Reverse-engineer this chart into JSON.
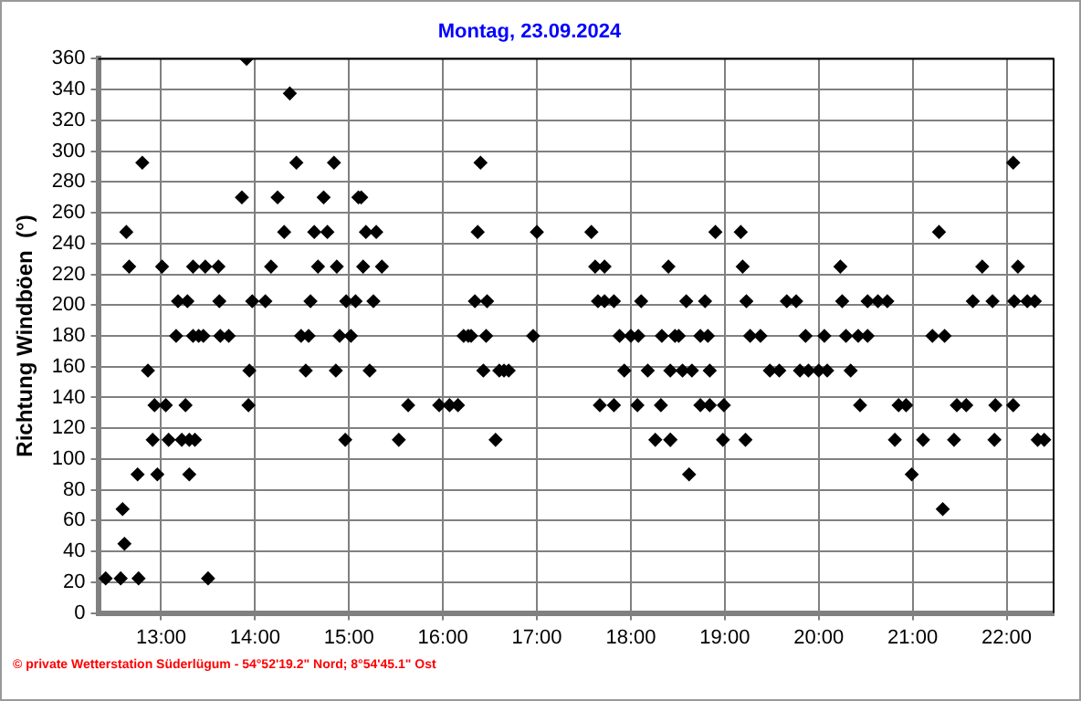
{
  "chart_data": {
    "type": "scatter",
    "title": "Montag, 23.09.2024",
    "ylabel": "Richtung Windböen  (°)",
    "annotations": [
      "© private Wetterstation Süderlügum - 54°52'19.2\" Nord; 8°54'45.1\" Ost"
    ],
    "series": [
      {
        "color": "#000000",
        "x": [
          12.41,
          12.57,
          12.76,
          13.5,
          12.61,
          12.59,
          12.75,
          12.96,
          13.3,
          12.91,
          13.08,
          13.22,
          13.3,
          13.36,
          12.93,
          13.05,
          13.26,
          13.93,
          12.86,
          13.94,
          14.54,
          14.86,
          13.16,
          13.34,
          13.4,
          13.45,
          13.63,
          13.72,
          14.49,
          14.57,
          14.9,
          15.02,
          13.18,
          13.28,
          13.62,
          13.97,
          14.11,
          14.59,
          14.97,
          15.07,
          12.66,
          13.01,
          13.34,
          13.47,
          13.61,
          14.17,
          14.67,
          14.87,
          12.63,
          14.31,
          14.63,
          14.77,
          13.86,
          14.24,
          14.73,
          15.1,
          12.8,
          14.44,
          14.84,
          14.37,
          13.91,
          16.4,
          15.13,
          15.18,
          15.29,
          16.37,
          17.0,
          17.58,
          15.15,
          15.35,
          17.62,
          17.72,
          18.4,
          15.26,
          16.34,
          16.47,
          17.65,
          17.72,
          17.82,
          18.11,
          16.22,
          16.27,
          16.3,
          16.46,
          16.96,
          17.88,
          18.0,
          18.08,
          18.33,
          18.47,
          15.22,
          16.43,
          16.6,
          16.65,
          16.7,
          17.93,
          18.18,
          18.55,
          15.63,
          15.96,
          16.07,
          16.16,
          17.67,
          17.82,
          18.07,
          18.32,
          14.96,
          15.53,
          16.56,
          18.26,
          18.42,
          18.62,
          18.9,
          19.17,
          21.28,
          19.19,
          20.23,
          21.74,
          22.12,
          18.59,
          18.79,
          19.23,
          19.66,
          19.76,
          20.25,
          20.52,
          20.63,
          20.73,
          21.64,
          21.85,
          22.08,
          22.22,
          22.3,
          18.51,
          18.74,
          18.82,
          19.27,
          19.38,
          19.86,
          20.06,
          20.29,
          20.42,
          20.52,
          21.21,
          21.34,
          18.42,
          18.65,
          18.84,
          19.48,
          19.58,
          19.8,
          19.89,
          20.0,
          20.09,
          20.34,
          18.74,
          18.84,
          18.99,
          20.44,
          20.85,
          20.93,
          21.47,
          21.57,
          21.88,
          22.07,
          18.42,
          18.98,
          19.22,
          20.81,
          21.11,
          21.44,
          21.87,
          22.33,
          22.4,
          20.99,
          21.32,
          22.07
        ],
        "values": [
          22.5,
          22.5,
          22.5,
          22.5,
          45,
          67.5,
          90,
          90,
          90,
          112.5,
          112.5,
          112.5,
          112.5,
          112.5,
          135,
          135,
          135,
          135,
          157.5,
          157.5,
          157.5,
          157.5,
          180,
          180,
          180,
          180,
          180,
          180,
          180,
          180,
          180,
          180,
          202.5,
          202.5,
          202.5,
          202.5,
          202.5,
          202.5,
          202.5,
          202.5,
          225,
          225,
          225,
          225,
          225,
          225,
          225,
          225,
          247.5,
          247.5,
          247.5,
          247.5,
          270,
          270,
          270,
          270,
          292.5,
          292.5,
          292.5,
          337.5,
          360,
          292.5,
          270,
          247.5,
          247.5,
          247.5,
          247.5,
          247.5,
          225,
          225,
          225,
          225,
          225,
          202.5,
          202.5,
          202.5,
          202.5,
          202.5,
          202.5,
          202.5,
          180,
          180,
          180,
          180,
          180,
          180,
          180,
          180,
          180,
          180,
          157.5,
          157.5,
          157.5,
          157.5,
          157.5,
          157.5,
          157.5,
          157.5,
          135,
          135,
          135,
          135,
          135,
          135,
          135,
          135,
          112.5,
          112.5,
          112.5,
          112.5,
          112.5,
          90,
          247.5,
          247.5,
          247.5,
          225,
          225,
          225,
          225,
          202.5,
          202.5,
          202.5,
          202.5,
          202.5,
          202.5,
          202.5,
          202.5,
          202.5,
          202.5,
          202.5,
          202.5,
          202.5,
          202.5,
          180,
          180,
          180,
          180,
          180,
          180,
          180,
          180,
          180,
          180,
          180,
          180,
          157.5,
          157.5,
          157.5,
          157.5,
          157.5,
          157.5,
          157.5,
          157.5,
          157.5,
          157.5,
          135,
          135,
          135,
          135,
          135,
          135,
          135,
          135,
          135,
          135,
          112.5,
          112.5,
          112.5,
          112.5,
          112.5,
          112.5,
          112.5,
          112.5,
          112.5,
          90,
          67.5,
          292.5
        ]
      }
    ],
    "xlim": [
      12.33,
      22.5
    ],
    "xticks": [
      {
        "value": 13,
        "label": "13:00"
      },
      {
        "value": 14,
        "label": "14:00"
      },
      {
        "value": 15,
        "label": "15:00"
      },
      {
        "value": 16,
        "label": "16:00"
      },
      {
        "value": 17,
        "label": "17:00"
      },
      {
        "value": 18,
        "label": "18:00"
      },
      {
        "value": 19,
        "label": "19:00"
      },
      {
        "value": 20,
        "label": "20:00"
      },
      {
        "value": 21,
        "label": "21:00"
      },
      {
        "value": 22,
        "label": "22:00"
      }
    ],
    "ylim": [
      0,
      360
    ],
    "yticks": [
      0,
      20,
      40,
      60,
      80,
      100,
      120,
      140,
      160,
      180,
      200,
      220,
      240,
      260,
      280,
      300,
      320,
      340,
      360
    ],
    "grid": true,
    "legend": false,
    "marker": "diamond"
  }
}
